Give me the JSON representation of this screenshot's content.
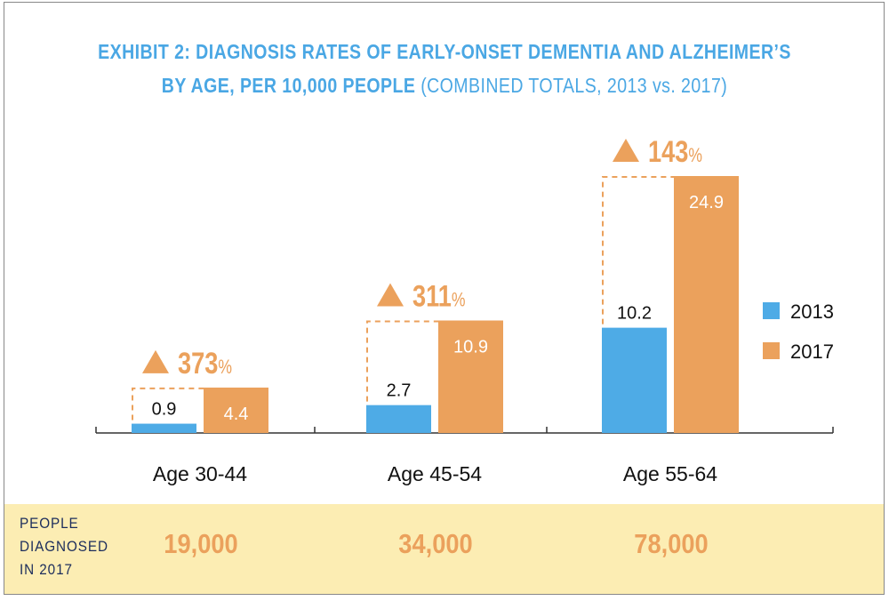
{
  "title_line1": "EXHIBIT 2: DIAGNOSIS RATES OF EARLY-ONSET DEMENTIA AND ALZHEIMER’S",
  "title_line2_bold": "BY AGE, PER 10,000 PEOPLE",
  "title_line2_light": "(COMBINED TOTALS, 2013 vs. 2017)",
  "colors": {
    "series_2013": "#4eabe6",
    "series_2017": "#eba15c",
    "band": "#fcedb3",
    "title": "#4aa7e4",
    "band_label": "#1c2d5c"
  },
  "chart_data": {
    "type": "bar",
    "title": "EXHIBIT 2: DIAGNOSIS RATES OF EARLY-ONSET DEMENTIA AND ALZHEIMER’S BY AGE, PER 10,000 PEOPLE (COMBINED TOTALS, 2013 vs. 2017)",
    "categories": [
      "Age 30-44",
      "Age 45-54",
      "Age 55-64"
    ],
    "series": [
      {
        "name": "2013",
        "values": [
          0.9,
          2.7,
          10.2
        ],
        "labels": [
          "0.9",
          "2.7",
          "10.2"
        ]
      },
      {
        "name": "2017",
        "values": [
          4.4,
          10.9,
          24.9
        ],
        "labels": [
          "4.4",
          "10.9",
          "24.9"
        ]
      }
    ],
    "increase_labels": [
      {
        "value": "373",
        "unit": "%"
      },
      {
        "value": "311",
        "unit": "%"
      },
      {
        "value": "143",
        "unit": "%"
      }
    ],
    "ylim": [
      0,
      25
    ],
    "grid": false,
    "legend_position": "right"
  },
  "band": {
    "label_lines": [
      "PEOPLE",
      "DIAGNOSED",
      "IN 2017"
    ],
    "counts": [
      "19,000",
      "34,000",
      "78,000"
    ]
  }
}
